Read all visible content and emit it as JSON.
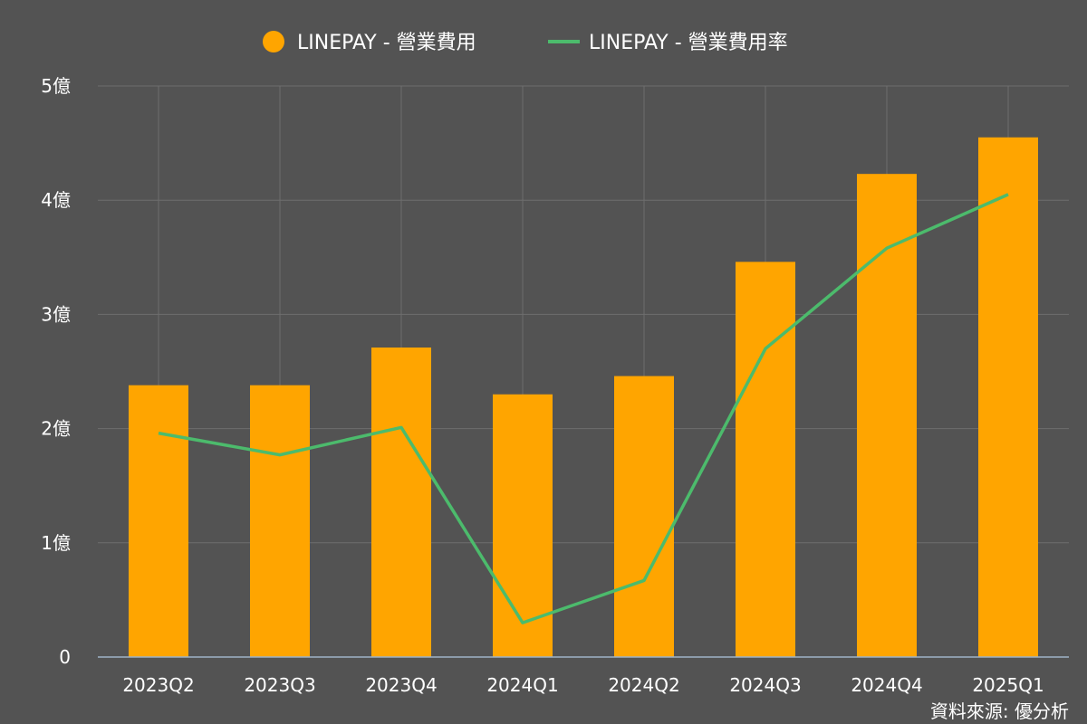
{
  "chart_data": {
    "type": "bar",
    "categories": [
      "2023Q2",
      "2023Q3",
      "2023Q4",
      "2024Q1",
      "2024Q2",
      "2024Q3",
      "2024Q4",
      "2025Q1"
    ],
    "series": [
      {
        "name": "LINEPAY - 營業費用",
        "kind": "bar",
        "color": "#FFA500",
        "values": [
          2.38,
          2.38,
          2.71,
          2.3,
          2.46,
          3.46,
          4.23,
          4.55
        ]
      },
      {
        "name": "LINEPAY - 營業費用率",
        "kind": "line",
        "color": "#4CBB6C",
        "values": [
          1.96,
          1.77,
          2.01,
          0.3,
          0.67,
          2.7,
          3.58,
          4.05
        ]
      }
    ],
    "yticks": [
      "0",
      "1億",
      "2億",
      "3億",
      "4億",
      "5億"
    ],
    "ylim": [
      0,
      5
    ],
    "grid": true,
    "legend_position": "top"
  },
  "source_text": "資料來源: 優分析",
  "colors": {
    "background": "#535353",
    "grid": "#6e6e6e",
    "axis": "#9fb3c8",
    "text": "#ffffff"
  }
}
